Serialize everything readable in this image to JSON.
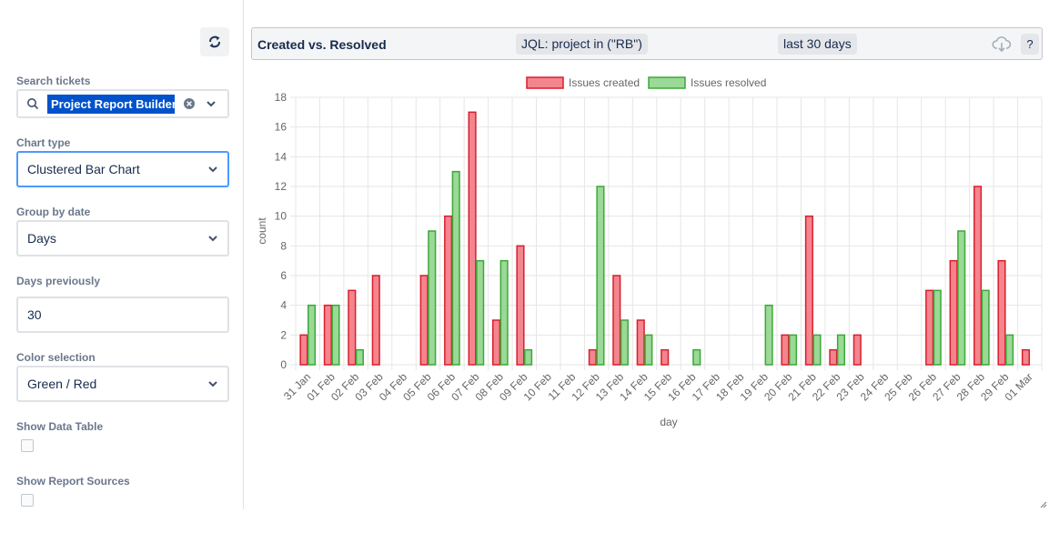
{
  "left_panel": {
    "refresh_icon": "refresh-icon",
    "search": {
      "label": "Search tickets",
      "selected": "Project Report Builder (RB)",
      "search_icon": "search-icon",
      "clear_icon": "clear-icon"
    },
    "chart_type": {
      "label": "Chart type",
      "value": "Clustered Bar Chart"
    },
    "group_by": {
      "label": "Group by date",
      "value": "Days"
    },
    "days_previously": {
      "label": "Days previously",
      "value": "30"
    },
    "color_selection": {
      "label": "Color selection",
      "value": "Green / Red"
    },
    "show_data_table": {
      "label": "Show Data Table",
      "checked": false
    },
    "show_report_sources": {
      "label": "Show Report Sources",
      "checked": false
    }
  },
  "header": {
    "title": "Created vs. Resolved",
    "jql": "JQL: project in (\"RB\")",
    "period": "last 30 days",
    "download_icon": "cloud-download-icon",
    "help_label": "?"
  },
  "colors": {
    "created_fill": "#f4858f",
    "created_stroke": "#d71f2c",
    "resolved_fill": "#9ad996",
    "resolved_stroke": "#3da838",
    "grid": "#e6e6e6",
    "axis_text": "#666666"
  },
  "chart_data": {
    "type": "bar",
    "categories": [
      "31 Jan",
      "01 Feb",
      "02 Feb",
      "03 Feb",
      "04 Feb",
      "05 Feb",
      "06 Feb",
      "07 Feb",
      "08 Feb",
      "09 Feb",
      "10 Feb",
      "11 Feb",
      "12 Feb",
      "13 Feb",
      "14 Feb",
      "15 Feb",
      "16 Feb",
      "17 Feb",
      "18 Feb",
      "19 Feb",
      "20 Feb",
      "21 Feb",
      "22 Feb",
      "23 Feb",
      "24 Feb",
      "25 Feb",
      "26 Feb",
      "27 Feb",
      "28 Feb",
      "29 Feb",
      "01 Mar"
    ],
    "series": [
      {
        "name": "Issues created",
        "values": [
          2,
          4,
          5,
          6,
          0,
          6,
          10,
          17,
          3,
          8,
          0,
          0,
          1,
          6,
          3,
          1,
          0,
          0,
          0,
          0,
          2,
          10,
          1,
          2,
          0,
          0,
          5,
          7,
          12,
          7,
          1
        ]
      },
      {
        "name": "Issues resolved",
        "values": [
          4,
          4,
          1,
          0,
          0,
          9,
          13,
          7,
          7,
          1,
          0,
          0,
          12,
          3,
          2,
          0,
          1,
          0,
          0,
          4,
          2,
          2,
          2,
          0,
          0,
          0,
          5,
          9,
          5,
          2,
          0
        ]
      }
    ],
    "xlabel": "day",
    "ylabel": "count",
    "ylim": [
      0,
      18
    ],
    "yticks": [
      0,
      2,
      4,
      6,
      8,
      10,
      12,
      14,
      16,
      18
    ],
    "legend": "top",
    "grid": true
  }
}
